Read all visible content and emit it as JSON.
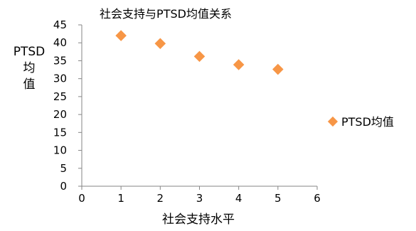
{
  "chart_data": {
    "type": "scatter",
    "title": "社会支持与PTSD均值关系",
    "xlabel": "社会支持水平",
    "ylabel": "PTSD均值",
    "ylabel_lines": [
      "PTSD",
      "均",
      "值"
    ],
    "xlim": [
      0,
      6
    ],
    "ylim": [
      0,
      45
    ],
    "x_ticks": [
      "0",
      "1",
      "2",
      "3",
      "4",
      "5",
      "6"
    ],
    "y_ticks": [
      "0",
      "5",
      "10",
      "15",
      "20",
      "25",
      "30",
      "35",
      "40",
      "45"
    ],
    "grid": false,
    "legend_position": "right",
    "series": [
      {
        "name": "PTSD均值",
        "color": "#F79646",
        "marker": "diamond",
        "x": [
          1,
          2,
          3,
          4,
          5
        ],
        "y": [
          42,
          39.8,
          36.2,
          33.9,
          32.6
        ]
      }
    ]
  }
}
